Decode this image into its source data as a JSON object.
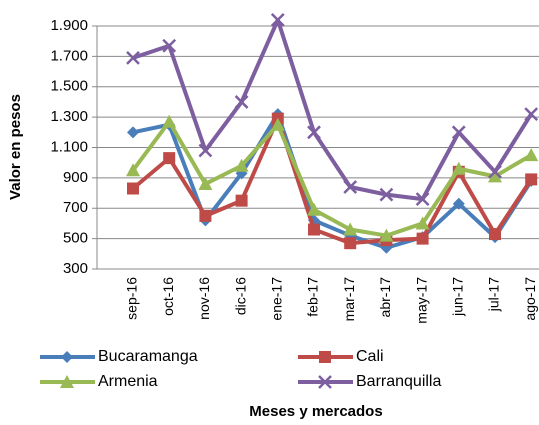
{
  "chart_data": {
    "type": "line",
    "categories": [
      "sep-16",
      "oct-16",
      "nov-16",
      "dic-16",
      "ene-17",
      "feb-17",
      "mar-17",
      "abr-17",
      "may-17",
      "jun-17",
      "jul-17",
      "ago-17"
    ],
    "series": [
      {
        "name": "Bucaramanga",
        "color": "#4a7ebb",
        "marker": "diamond",
        "values": [
          1200,
          1250,
          620,
          930,
          1320,
          620,
          520,
          440,
          510,
          730,
          510,
          880
        ]
      },
      {
        "name": "Cali",
        "color": "#be4b48",
        "marker": "square",
        "values": [
          830,
          1030,
          650,
          750,
          1290,
          560,
          470,
          490,
          500,
          940,
          530,
          890
        ]
      },
      {
        "name": "Armenia",
        "color": "#98b954",
        "marker": "triangle",
        "values": [
          950,
          1270,
          860,
          980,
          1250,
          690,
          560,
          520,
          600,
          960,
          910,
          1050
        ]
      },
      {
        "name": "Barranquilla",
        "color": "#7d5fa0",
        "marker": "x",
        "values": [
          1690,
          1770,
          1080,
          1400,
          1940,
          1200,
          840,
          790,
          760,
          1200,
          940,
          1320
        ]
      }
    ],
    "ylim": [
      300,
      1900
    ],
    "yticks": [
      300,
      500,
      700,
      900,
      {
        "value": 1100,
        "label": "1.100"
      },
      {
        "value": 1300,
        "label": "1.300"
      },
      {
        "value": 1500,
        "label": "1.500"
      },
      {
        "value": 1700,
        "label": "1.700"
      },
      {
        "value": 1900,
        "label": "1.900"
      }
    ],
    "grid": true,
    "y_label": "Valor en pesos",
    "x_label": "Meses  y mercados"
  }
}
